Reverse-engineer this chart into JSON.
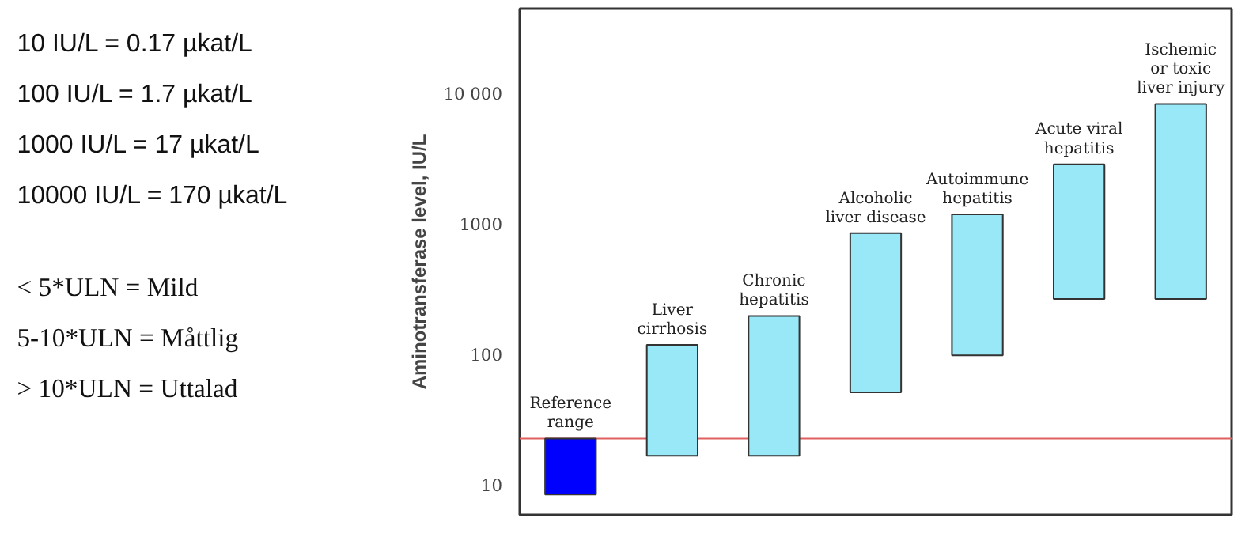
{
  "chart_data": {
    "type": "bar",
    "ylabel": "Aminotransferase level, IU/L",
    "categories": [
      "Reference\nrange",
      "Liver\ncirrhosis",
      "Chronic\nhepatitis",
      "Alcoholic\nliver disease",
      "Autoimmune\nhepatitis",
      "Acute viral\nhepatitis",
      "Ischemic\nor toxic\nliver injury"
    ],
    "base": [
      8.6,
      17,
      17,
      52,
      100,
      270,
      270
    ],
    "values": [
      14.4,
      103,
      183,
      808,
      1100,
      2630,
      8130
    ],
    "colors": [
      "#0000ff",
      "#99e8f8",
      "#99e8f8",
      "#99e8f8",
      "#99e8f8",
      "#99e8f8",
      "#99e8f8"
    ],
    "log": "y",
    "ylim": [
      6,
      45000
    ],
    "yticks": [
      10,
      100,
      1000,
      {
        "value": 10000,
        "label": "10 000"
      }
    ],
    "tick_labels": "y",
    "grid": false,
    "ref_lines": [
      {
        "axis": "y",
        "value": 23,
        "color": "#e06060"
      }
    ],
    "annotations": [
      "10 IU/L = 0.17 µkat/L",
      "100 IU/L = 1.7 µkat/L",
      "1000 IU/L = 17 µkat/L",
      "10000 IU/L = 170 µkat/L",
      "< 5*ULN = Mild",
      "5-10*ULN = Måttlig",
      "> 10*ULN = Uttalad"
    ]
  }
}
